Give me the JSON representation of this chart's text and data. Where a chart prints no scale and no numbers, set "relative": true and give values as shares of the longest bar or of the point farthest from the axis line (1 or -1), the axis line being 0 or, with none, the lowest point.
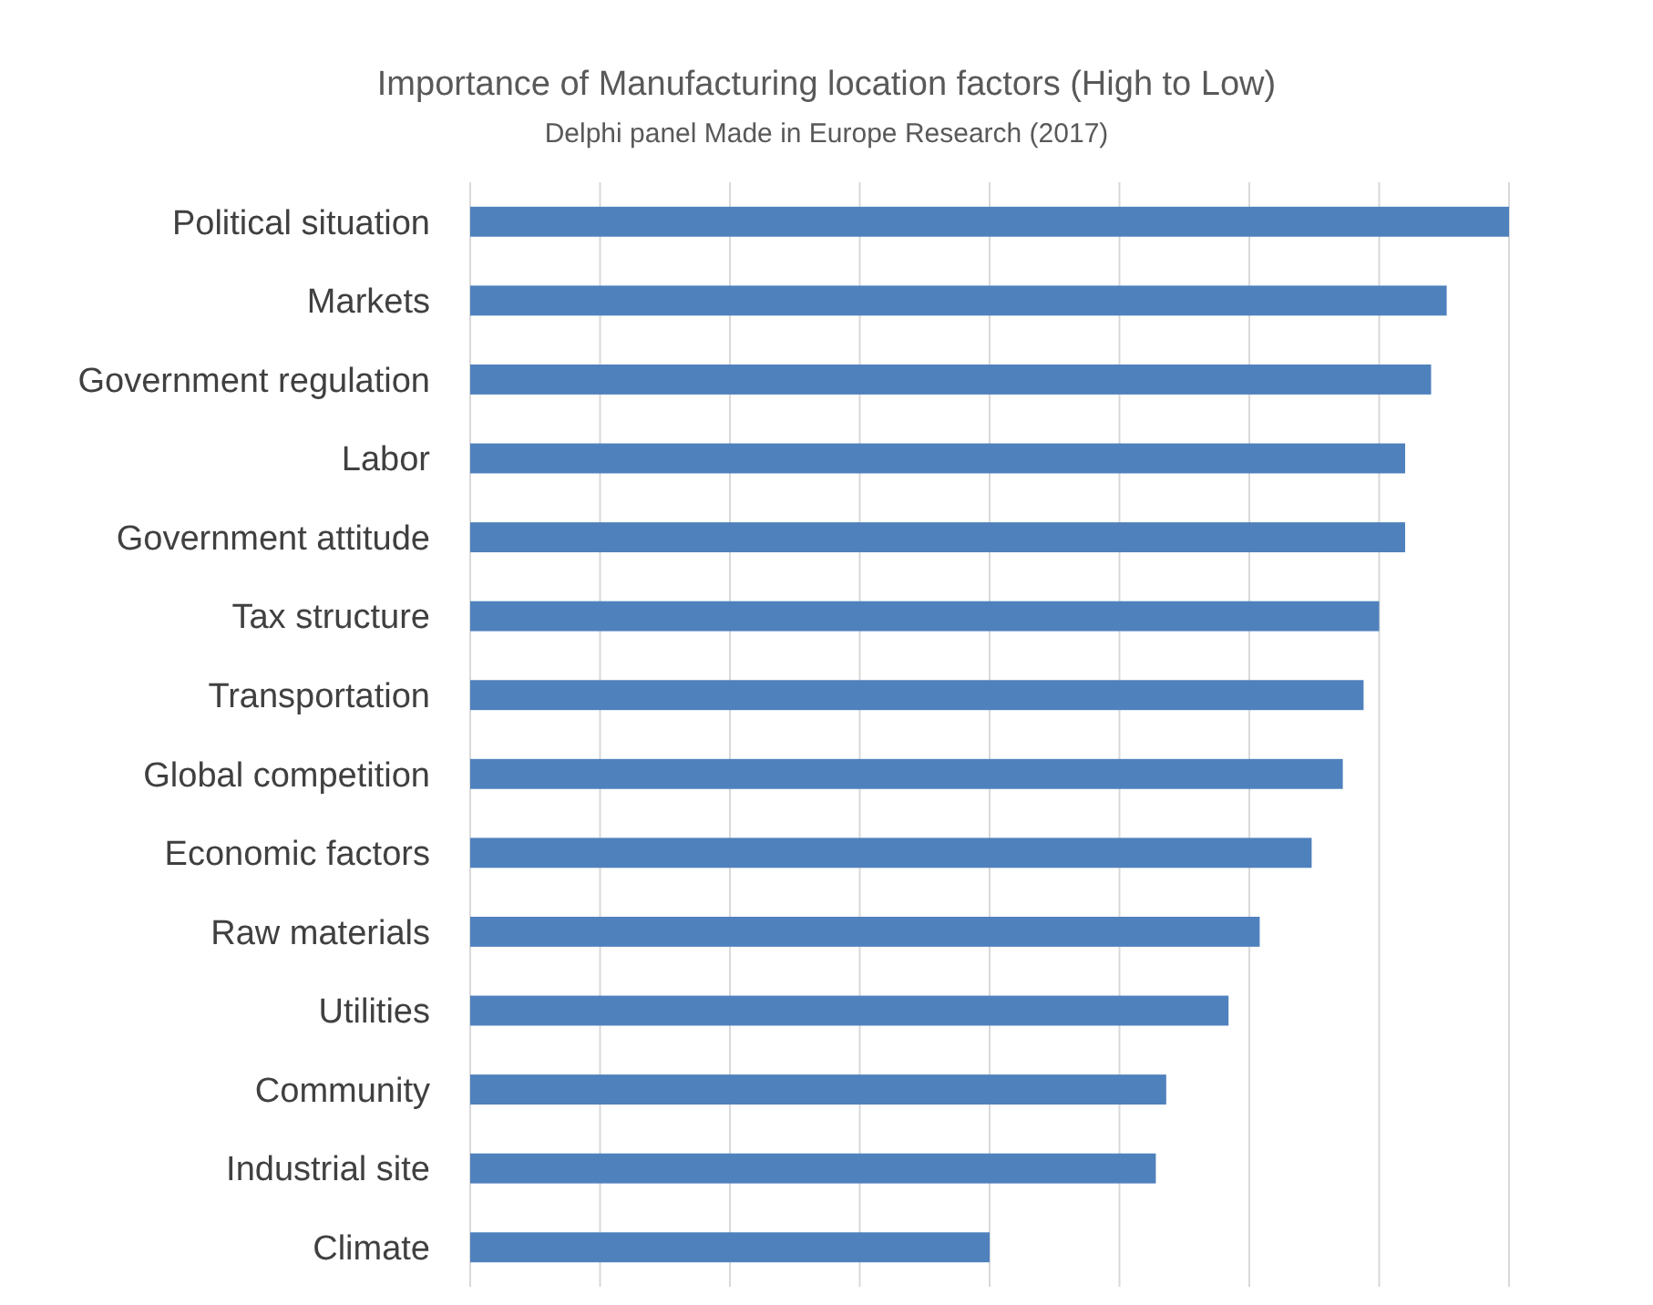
{
  "chart_data": {
    "type": "bar",
    "orientation": "horizontal",
    "relative": true,
    "title": "Importance of Manufacturing location factors (High to Low)",
    "subtitle": "Delphi panel Made in Europe Research (2017)",
    "categories": [
      "Political situation",
      "Markets",
      "Government regulation",
      "Labor",
      "Government attitude",
      "Tax structure",
      "Transportation",
      "Global competition",
      "Economic factors",
      "Raw materials",
      "Utilities",
      "Community",
      "Industrial site",
      "Climate"
    ],
    "values": [
      1,
      0.94,
      0.925,
      0.9,
      0.9,
      0.875,
      0.86,
      0.84,
      0.81,
      0.76,
      0.73,
      0.67,
      0.66,
      0.5
    ],
    "color": "#4f81bd",
    "grid": "x"
  }
}
